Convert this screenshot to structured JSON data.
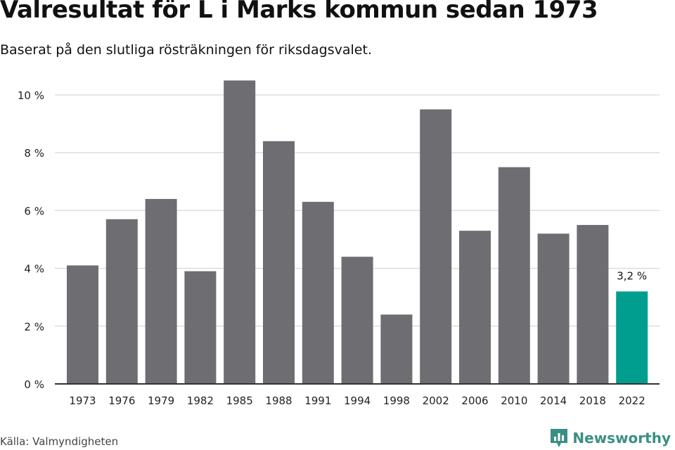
{
  "title": "Valresultat för L i Marks kommun sedan 1973",
  "subtitle": "Baserat på den slutliga rösträkningen för riksdagsvalet.",
  "source": "Källa: Valmyndigheten",
  "brand": "Newsworthy",
  "brand_icon": "bar-chart-logo-icon",
  "colors": {
    "bar": "#6e6d72",
    "highlight": "#009e8f",
    "grid": "#dddddd",
    "axis": "#333333",
    "brand": "#3a8f85"
  },
  "chart_data": {
    "type": "bar",
    "categories": [
      "1973",
      "1976",
      "1979",
      "1982",
      "1985",
      "1988",
      "1991",
      "1994",
      "1998",
      "2002",
      "2006",
      "2010",
      "2014",
      "2018",
      "2022"
    ],
    "values": [
      4.1,
      5.7,
      6.4,
      3.9,
      10.5,
      8.4,
      6.3,
      4.4,
      2.4,
      9.5,
      5.3,
      7.5,
      5.2,
      5.5,
      3.2
    ],
    "ylim": [
      0,
      10
    ],
    "yticks": [
      0,
      2,
      4,
      6,
      8,
      10
    ],
    "ytick_labels": [
      "0 %",
      "2 %",
      "4 %",
      "6 %",
      "8 %",
      "10 %"
    ],
    "highlight_index": 14,
    "data_labels": [
      {
        "index": 14,
        "text": "3,2 %"
      }
    ],
    "grid": true,
    "xlabel": "",
    "ylabel": ""
  }
}
